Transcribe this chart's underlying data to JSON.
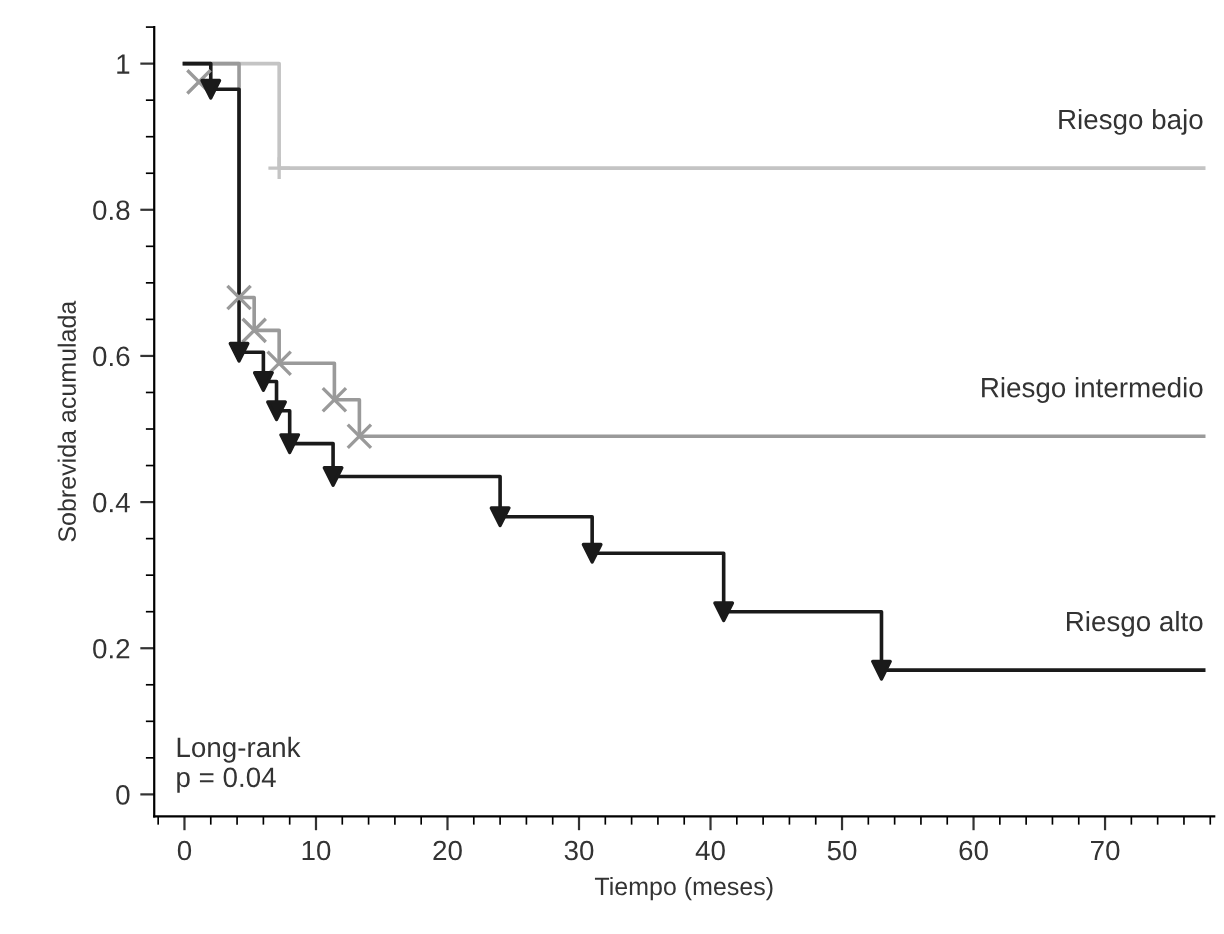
{
  "chart_data": {
    "type": "step",
    "xlabel": "Tiempo (meses)",
    "ylabel": "Sobrevida acumulada",
    "xlim": [
      -2.3,
      78.3
    ],
    "ylim": [
      -0.03,
      1.05
    ],
    "xticks": [
      0,
      10,
      20,
      30,
      40,
      50,
      60,
      70
    ],
    "yticks": [
      0,
      0.2,
      0.4,
      0.6,
      0.8,
      1
    ],
    "grid": false,
    "legend": false,
    "annotations": [
      "Long-rank\np = 0.04"
    ],
    "series": [
      {
        "name": "Riesgo bajo",
        "color": "#c4c4c4",
        "x": [
          0,
          7.2,
          77.5
        ],
        "values": [
          1,
          0.857,
          0.857
        ]
      },
      {
        "type": "scatter",
        "marker": "plus",
        "color": "#c4c4c4",
        "x": [
          7.2
        ],
        "values": [
          0.857
        ]
      },
      {
        "name": "Riesgo intermedio",
        "color": "#9a9a9a",
        "x": [
          0,
          4.15,
          5.3,
          7.2,
          11.4,
          13.3,
          77.5
        ],
        "values": [
          1,
          0.68,
          0.635,
          0.59,
          0.54,
          0.49,
          0.49
        ]
      },
      {
        "type": "scatter",
        "marker": "cross",
        "color": "#9a9a9a",
        "x": [
          1.1,
          4.15,
          5.3,
          7.2,
          11.4,
          13.3
        ],
        "values": [
          0.975,
          0.68,
          0.635,
          0.59,
          0.54,
          0.49
        ]
      },
      {
        "name": "Riesgo alto",
        "color": "#1a1a1a",
        "x": [
          0,
          2.0,
          4.15,
          6.0,
          7.0,
          8.0,
          11.3,
          24,
          31,
          41,
          53,
          77.5
        ],
        "values": [
          1,
          0.965,
          0.605,
          0.565,
          0.525,
          0.48,
          0.435,
          0.38,
          0.33,
          0.25,
          0.17,
          0.17
        ]
      },
      {
        "type": "scatter",
        "marker": "triangle",
        "color": "#1a1a1a",
        "x": [
          2.0,
          4.15,
          6.0,
          7.0,
          8.0,
          11.3,
          24,
          31,
          41,
          53
        ],
        "values": [
          0.965,
          0.605,
          0.565,
          0.525,
          0.48,
          0.435,
          0.38,
          0.33,
          0.25,
          0.17
        ]
      }
    ]
  }
}
